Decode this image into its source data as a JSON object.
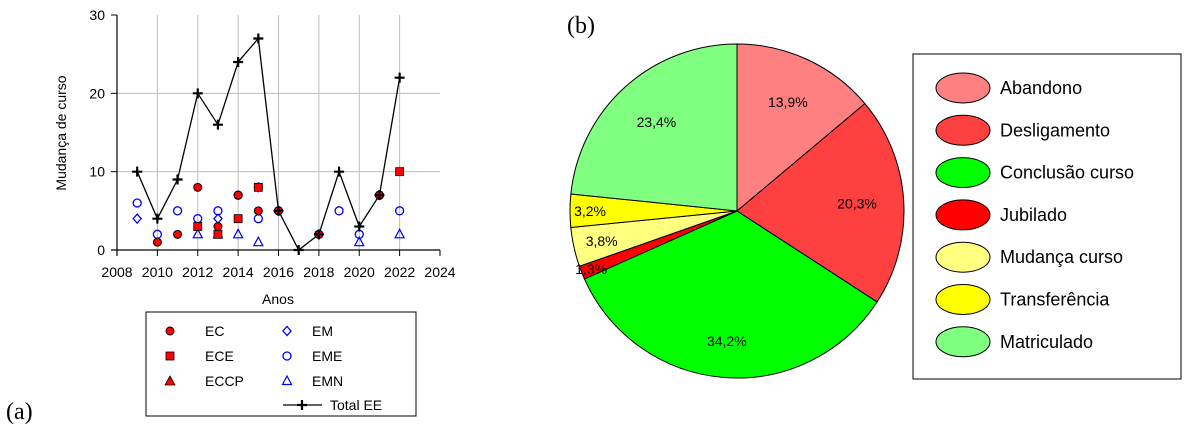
{
  "panel_labels": {
    "a": "(a)",
    "b": "(b)"
  },
  "chart_data": [
    {
      "type": "scatter",
      "title": "",
      "xlabel": "Anos",
      "ylabel": "Mudança de curso",
      "xlim": [
        2008,
        2024
      ],
      "ylim": [
        0,
        30
      ],
      "xticks": [
        2008,
        2010,
        2012,
        2014,
        2016,
        2018,
        2020,
        2022,
        2024
      ],
      "yticks": [
        0,
        10,
        20,
        30
      ],
      "grid": true,
      "legend_position": "bottom",
      "series": [
        {
          "name": "EC",
          "marker": "circle-filled",
          "color": "#ff0000",
          "points": [
            [
              2010,
              1
            ],
            [
              2011,
              2
            ],
            [
              2012,
              8
            ],
            [
              2013,
              3
            ],
            [
              2014,
              7
            ],
            [
              2015,
              5
            ],
            [
              2016,
              5
            ],
            [
              2018,
              2
            ],
            [
              2021,
              7
            ]
          ]
        },
        {
          "name": "ECE",
          "marker": "square-filled",
          "color": "#ff0000",
          "points": [
            [
              2012,
              3
            ],
            [
              2013,
              2
            ],
            [
              2014,
              4
            ],
            [
              2015,
              8
            ],
            [
              2022,
              10
            ]
          ]
        },
        {
          "name": "ECCP",
          "marker": "triangle-filled",
          "color": "#ff0000",
          "points": []
        },
        {
          "name": "EM",
          "marker": "diamond-open",
          "color": "#0000ff",
          "points": [
            [
              2009,
              4
            ],
            [
              2013,
              4
            ],
            [
              2015,
              8
            ]
          ]
        },
        {
          "name": "EME",
          "marker": "circle-open",
          "color": "#0000ff",
          "points": [
            [
              2009,
              6
            ],
            [
              2010,
              2
            ],
            [
              2011,
              5
            ],
            [
              2012,
              4
            ],
            [
              2013,
              5
            ],
            [
              2014,
              7
            ],
            [
              2015,
              4
            ],
            [
              2016,
              5
            ],
            [
              2018,
              2
            ],
            [
              2019,
              5
            ],
            [
              2020,
              2
            ],
            [
              2021,
              7
            ],
            [
              2022,
              5
            ]
          ]
        },
        {
          "name": "EMN",
          "marker": "triangle-open",
          "color": "#0000ff",
          "points": [
            [
              2012,
              2
            ],
            [
              2013,
              2
            ],
            [
              2014,
              2
            ],
            [
              2015,
              1
            ],
            [
              2020,
              1
            ],
            [
              2022,
              2
            ]
          ]
        },
        {
          "name": "Total EE",
          "marker": "plus-line",
          "color": "#000000",
          "points": [
            [
              2009,
              10
            ],
            [
              2010,
              4
            ],
            [
              2011,
              9
            ],
            [
              2012,
              20
            ],
            [
              2013,
              16
            ],
            [
              2014,
              24
            ],
            [
              2015,
              27
            ],
            [
              2016,
              5
            ],
            [
              2017,
              0
            ],
            [
              2018,
              2
            ],
            [
              2019,
              10
            ],
            [
              2020,
              3
            ],
            [
              2021,
              7
            ],
            [
              2022,
              22
            ]
          ]
        }
      ]
    },
    {
      "type": "pie",
      "title": "",
      "legend_position": "right",
      "slices": [
        {
          "label": "Abandono",
          "value": 13.9,
          "text": "13,9%",
          "color": "#ff8080"
        },
        {
          "label": "Desligamento",
          "value": 20.3,
          "text": "20,3%",
          "color": "#ff4040"
        },
        {
          "label": "Conclusão curso",
          "value": 34.2,
          "text": "34,2%",
          "color": "#00ff00"
        },
        {
          "label": "Jubilado",
          "value": 1.3,
          "text": "1,3%",
          "color": "#ff0000"
        },
        {
          "label": "Mudança curso",
          "value": 3.8,
          "text": "3,8%",
          "color": "#ffff80"
        },
        {
          "label": "Transferência",
          "value": 3.2,
          "text": "3,2%",
          "color": "#ffff00"
        },
        {
          "label": "Matriculado",
          "value": 23.4,
          "text": "23,4%",
          "color": "#80ff80"
        }
      ]
    }
  ]
}
